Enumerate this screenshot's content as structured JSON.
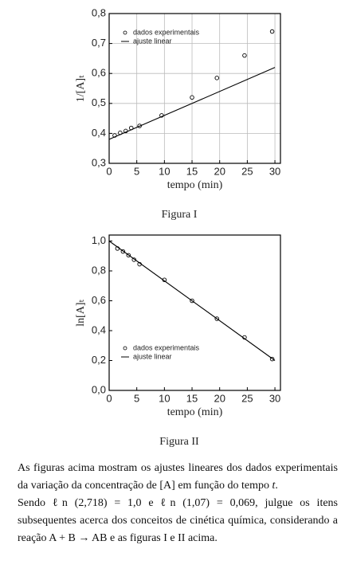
{
  "chart_data": [
    {
      "type": "scatter",
      "xlabel": "tempo (min)",
      "ylabel": "1/[A]ₜ",
      "xlim": [
        0,
        31
      ],
      "xticks": [
        0,
        5,
        10,
        15,
        20,
        25,
        30
      ],
      "ylim": [
        0.3,
        0.8
      ],
      "yticks": [
        {
          "value": 0.3,
          "label": "0,3"
        },
        {
          "value": 0.4,
          "label": "0,4"
        },
        {
          "value": 0.5,
          "label": "0,5"
        },
        {
          "value": 0.6,
          "label": "0,6"
        },
        {
          "value": 0.7,
          "label": "0,7"
        },
        {
          "value": 0.8,
          "label": "0,8"
        }
      ],
      "grid": true,
      "legend": "upper left",
      "series": [
        {
          "name": "dados experimentais",
          "style": "points",
          "color": "#000000",
          "x": [
            1,
            2,
            3,
            4,
            5.5,
            9.5,
            15,
            19.5,
            24.5,
            29.5
          ],
          "values": [
            0.393,
            0.402,
            0.408,
            0.418,
            0.425,
            0.46,
            0.52,
            0.585,
            0.66,
            0.74
          ]
        },
        {
          "name": "ajuste linear",
          "style": "line",
          "color": "#000000",
          "x": [
            0,
            30
          ],
          "values": [
            0.38,
            0.62
          ]
        }
      ]
    },
    {
      "type": "scatter",
      "xlabel": "tempo (min)",
      "ylabel": "ln[A]ₜ",
      "xlim": [
        0,
        31
      ],
      "xticks": [
        0,
        5,
        10,
        15,
        20,
        25,
        30
      ],
      "ylim": [
        0,
        1.04
      ],
      "yticks": [
        {
          "value": 0,
          "label": "0,0"
        },
        {
          "value": 0.2,
          "label": "0,2"
        },
        {
          "value": 0.4,
          "label": "0,4"
        },
        {
          "value": 0.6,
          "label": "0,6"
        },
        {
          "value": 0.8,
          "label": "0,8"
        },
        {
          "value": 1,
          "label": "1,0"
        }
      ],
      "grid": false,
      "legend": "lower left",
      "series": [
        {
          "name": "dados experimentais",
          "style": "points",
          "color": "#000000",
          "x": [
            1.5,
            2.5,
            3.5,
            4.5,
            5.5,
            10,
            15,
            19.5,
            24.5,
            29.5
          ],
          "values": [
            0.95,
            0.93,
            0.905,
            0.875,
            0.845,
            0.74,
            0.6,
            0.48,
            0.355,
            0.21
          ]
        },
        {
          "name": "ajuste linear",
          "style": "line",
          "color": "#000000",
          "x": [
            0,
            30
          ],
          "values": [
            1.0,
            0.2
          ]
        }
      ]
    }
  ],
  "captions": [
    "Figura I",
    "Figura II"
  ],
  "paragraphs": [
    [
      "As figuras acima mostram os ajustes lineares dos dados experimentais da variação da concentração de [A] em função do tempo ",
      "t",
      "."
    ],
    [
      "Sendo ℓn (2,718) = 1,0 e ℓn (1,07) = 0,069, julgue os itens subsequentes acerca dos conceitos de cinética química, considerando a reação A + B → AB e as figuras I e II acima."
    ]
  ]
}
